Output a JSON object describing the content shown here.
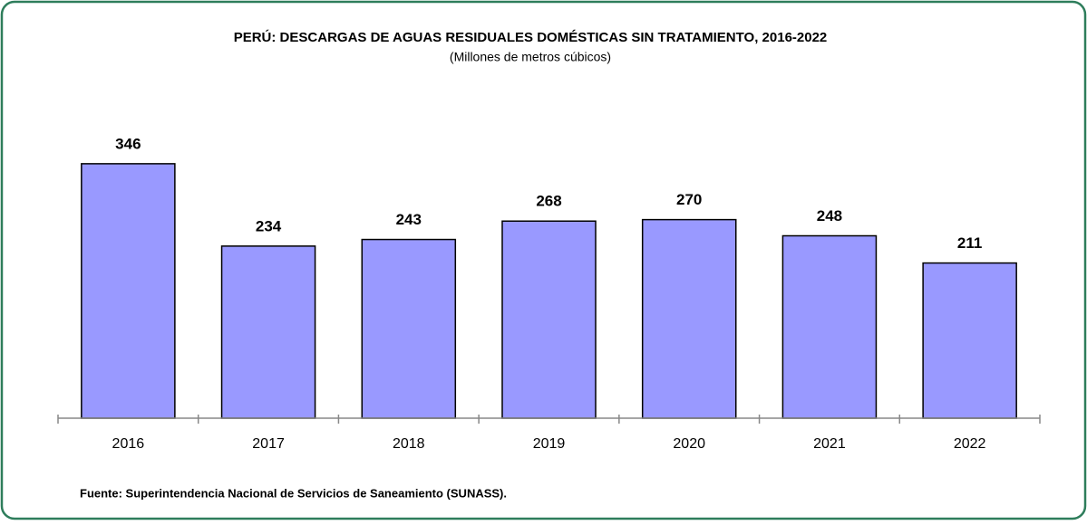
{
  "chart_data": {
    "type": "bar",
    "title": "PERÚ: DESCARGAS DE AGUAS RESIDUALES DOMÉSTICAS SIN TRATAMIENTO, 2016-2022",
    "subtitle": "(Millones de metros cúbicos)",
    "categories": [
      "2016",
      "2017",
      "2018",
      "2019",
      "2020",
      "2021",
      "2022"
    ],
    "values": [
      346,
      234,
      243,
      268,
      270,
      248,
      211
    ],
    "color": "#9999ff",
    "ylim": [
      0,
      400
    ],
    "source": "Fuente: Superintendencia Nacional de Servicios de Saneamiento (SUNASS)."
  }
}
